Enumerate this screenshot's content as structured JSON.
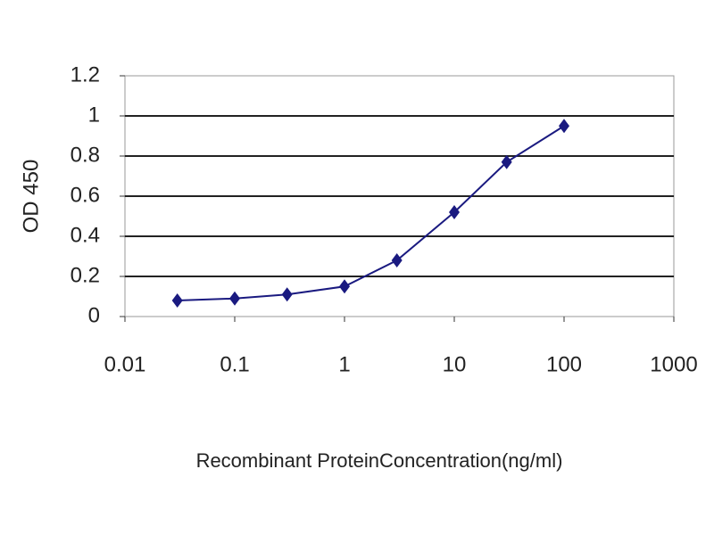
{
  "chart_data": {
    "type": "line",
    "xlabel": "Recombinant ProteinConcentration(ng/ml)",
    "ylabel": "OD 450",
    "xscale": "log",
    "grid": true,
    "xlim": [
      0.01,
      1000
    ],
    "xticks": [
      0.01,
      0.1,
      1,
      10,
      100,
      1000
    ],
    "ylim": [
      0,
      1.2
    ],
    "yticks": [
      0,
      0.2,
      0.4,
      0.6,
      0.8,
      1,
      1.2
    ],
    "series": [
      {
        "color": "#1a1a80",
        "x": [
          0.03,
          0.1,
          0.3,
          1,
          3,
          10,
          30,
          100
        ],
        "values": [
          0.08,
          0.09,
          0.11,
          0.15,
          0.28,
          0.52,
          0.77,
          0.95
        ]
      }
    ]
  }
}
